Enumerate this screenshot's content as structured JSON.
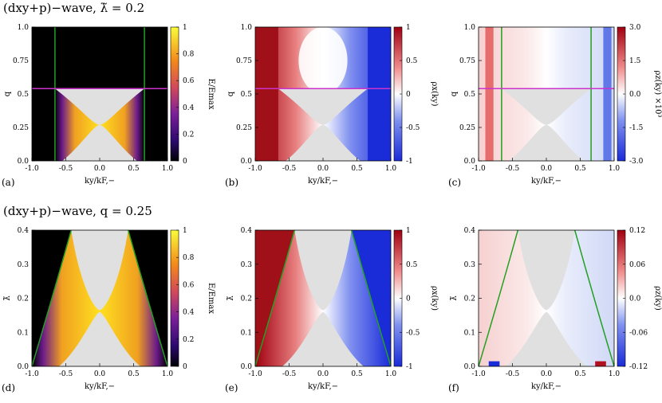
{
  "rows": [
    {
      "title": "(dxy+p)−wave, λ̃ = 0.2"
    },
    {
      "title": "(dxy+p)−wave, q = 0.25"
    }
  ],
  "colors": {
    "gap": "#e0e0e0",
    "black": "#000000",
    "green_line": "#22a022",
    "magenta_line": "#cc33cc",
    "red": "#b2182b",
    "blue": "#2040c0",
    "white": "#ffffff"
  },
  "chart_data": [
    {
      "id": "a",
      "panel_label": "(a)",
      "type": "heatmap",
      "kind": "energy",
      "xlabel": "ky/kF,−",
      "ylabel": "q",
      "xlim": [
        -1,
        1
      ],
      "ylim": [
        0,
        1
      ],
      "xticks": [
        "-1.0",
        "-0.5",
        "0.0",
        "0.5",
        "1.0"
      ],
      "yticks": [
        "0.0",
        "0.25",
        "0.5",
        "0.75",
        "1.0"
      ],
      "colorbar": {
        "label": "E/Emax",
        "ticks": [
          "0",
          "0.2",
          "0.4",
          "0.6",
          "0.8",
          "1"
        ],
        "range": [
          0,
          1
        ]
      },
      "lines": [
        {
          "type": "vertical",
          "x": -0.66,
          "color": "green"
        },
        {
          "type": "vertical",
          "x": 0.66,
          "color": "green"
        },
        {
          "type": "horizontal",
          "y": 0.54,
          "color": "magenta"
        }
      ]
    },
    {
      "id": "b",
      "panel_label": "(b)",
      "type": "heatmap",
      "kind": "polarization",
      "xlabel": "ky/kF,−",
      "ylabel": "q",
      "xlim": [
        -1,
        1
      ],
      "ylim": [
        0,
        1
      ],
      "xticks": [
        "-1.0",
        "-0.5",
        "0.0",
        "0.5",
        "1.0"
      ],
      "yticks": [
        "0.0",
        "0.25",
        "0.5",
        "0.75",
        "1.0"
      ],
      "colorbar": {
        "label": "ρx(ky)",
        "ticks": [
          "1",
          "0.5",
          "0",
          "-0.5",
          "-1"
        ],
        "range": [
          -1,
          1
        ]
      },
      "lines": [
        {
          "type": "horizontal",
          "y": 0.54,
          "color": "magenta"
        }
      ]
    },
    {
      "id": "c",
      "panel_label": "(c)",
      "type": "heatmap",
      "kind": "polarization_z",
      "xlabel": "ky/kF,−",
      "ylabel": "q",
      "xlim": [
        -1,
        1
      ],
      "ylim": [
        0,
        1
      ],
      "xticks": [
        "-1.0",
        "-0.5",
        "0.0",
        "0.5",
        "1.0"
      ],
      "yticks": [
        "0.0",
        "0.25",
        "0.5",
        "0.75",
        "1.0"
      ],
      "colorbar": {
        "label": "ρz(ky) ×10³",
        "ticks": [
          "3.0",
          "1.5",
          "0.0",
          "-1.5",
          "-3.0"
        ],
        "range": [
          -3,
          3
        ]
      },
      "lines": [
        {
          "type": "vertical",
          "x": -0.66,
          "color": "green"
        },
        {
          "type": "vertical",
          "x": 0.66,
          "color": "green"
        },
        {
          "type": "horizontal",
          "y": 0.54,
          "color": "magenta"
        }
      ]
    },
    {
      "id": "d",
      "panel_label": "(d)",
      "type": "heatmap",
      "kind": "energy",
      "xlabel": "ky/kF,−",
      "ylabel": "λ̃",
      "xlim": [
        -1,
        1
      ],
      "ylim": [
        0,
        0.4
      ],
      "xticks": [
        "-1.0",
        "-0.5",
        "0.0",
        "0.5",
        "1.0"
      ],
      "yticks": [
        "0.0",
        "0.1",
        "0.2",
        "0.3",
        "0.4"
      ],
      "colorbar": {
        "label": "E/Emax",
        "ticks": [
          "0",
          "0.2",
          "0.4",
          "0.6",
          "0.8",
          "1"
        ],
        "range": [
          0,
          1
        ]
      }
    },
    {
      "id": "e",
      "panel_label": "(e)",
      "type": "heatmap",
      "kind": "polarization",
      "xlabel": "ky/kF,−",
      "ylabel": "λ̃",
      "xlim": [
        -1,
        1
      ],
      "ylim": [
        0,
        0.4
      ],
      "xticks": [
        "-1.0",
        "-0.5",
        "0.0",
        "0.5",
        "1.0"
      ],
      "yticks": [
        "0.0",
        "0.1",
        "0.2",
        "0.3",
        "0.4"
      ],
      "colorbar": {
        "label": "ρx(ky)",
        "ticks": [
          "1",
          "0.5",
          "0",
          "-0.5",
          "-1"
        ],
        "range": [
          -1,
          1
        ]
      }
    },
    {
      "id": "f",
      "panel_label": "(f)",
      "type": "heatmap",
      "kind": "polarization_z",
      "xlabel": "ky/kF,−",
      "ylabel": "λ̃",
      "xlim": [
        -1,
        1
      ],
      "ylim": [
        0,
        0.4
      ],
      "xticks": [
        "-1.0",
        "-0.5",
        "0.0",
        "0.5",
        "1.0"
      ],
      "yticks": [
        "0.0",
        "0.1",
        "0.2",
        "0.3",
        "0.4"
      ],
      "colorbar": {
        "label": "ρz(ky)",
        "ticks": [
          "0.12",
          "0.06",
          "0.0",
          "-0.06",
          "-0.12"
        ],
        "range": [
          -0.12,
          0.12
        ]
      }
    }
  ]
}
